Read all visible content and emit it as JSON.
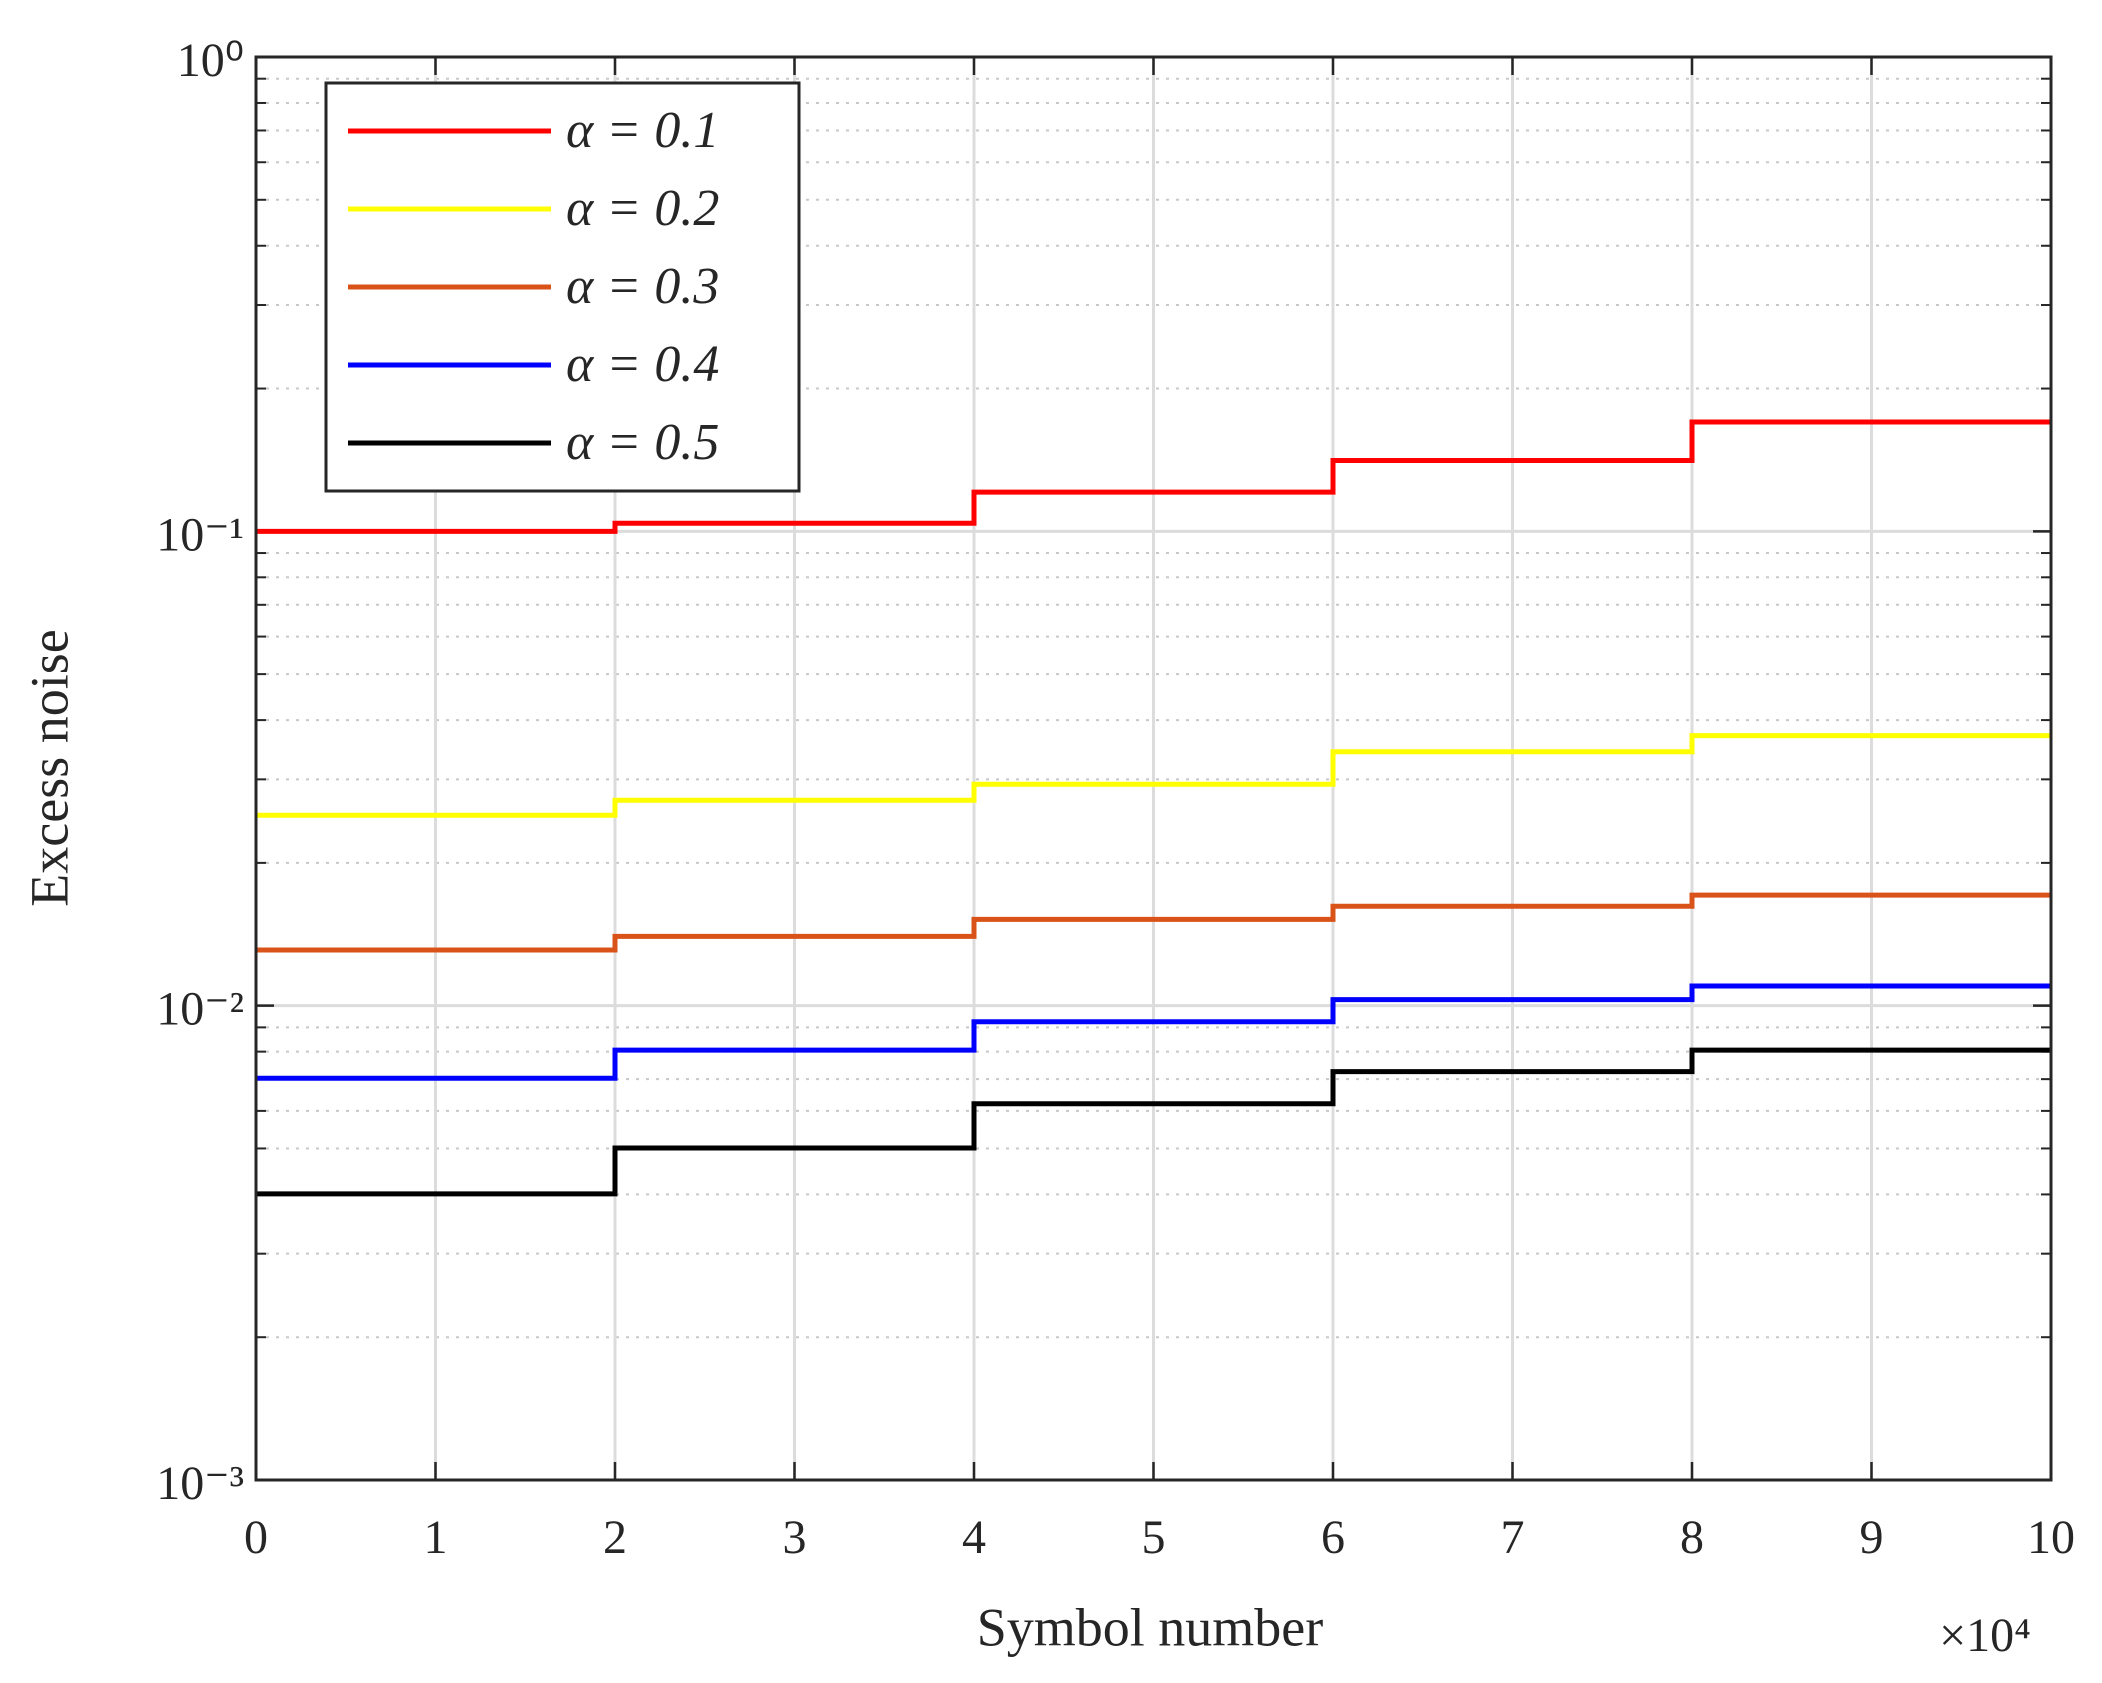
{
  "chart_data": {
    "type": "step",
    "xlabel": "Symbol number",
    "ylabel": "Excess noise",
    "x_multiplier": "×10⁴",
    "x": [
      0,
      2,
      4,
      6,
      8,
      10
    ],
    "series": [
      {
        "name": "α = 0.1",
        "color": "#ff0000",
        "values": [
          0.1,
          0.104,
          0.121,
          0.141,
          0.17,
          0.17
        ]
      },
      {
        "name": "α = 0.2",
        "color": "#ffff00",
        "values": [
          0.0252,
          0.0271,
          0.0293,
          0.0343,
          0.0371,
          0.0371
        ]
      },
      {
        "name": "α = 0.3",
        "color": "#d95319",
        "values": [
          0.0131,
          0.014,
          0.0152,
          0.0162,
          0.0171,
          0.0171
        ]
      },
      {
        "name": "α = 0.4",
        "color": "#0000ff",
        "values": [
          0.00703,
          0.00806,
          0.00925,
          0.0103,
          0.011,
          0.011
        ]
      },
      {
        "name": "α = 0.5",
        "color": "#000000",
        "values": [
          0.00401,
          0.00501,
          0.00621,
          0.00726,
          0.00806,
          0.00806
        ]
      }
    ],
    "xlim": [
      0,
      10
    ],
    "xticks": [
      0,
      1,
      2,
      3,
      4,
      5,
      6,
      7,
      8,
      9,
      10
    ],
    "ylim": [
      0.001,
      1
    ],
    "yticks": [
      {
        "value": 0.001,
        "label": "10⁻³"
      },
      {
        "value": 0.01,
        "label": "10⁻²"
      },
      {
        "value": 0.1,
        "label": "10⁻¹"
      },
      {
        "value": 1,
        "label": "10⁰"
      }
    ],
    "yscale": "log",
    "grid": true,
    "minor_grid": true,
    "legend": "upper left"
  }
}
